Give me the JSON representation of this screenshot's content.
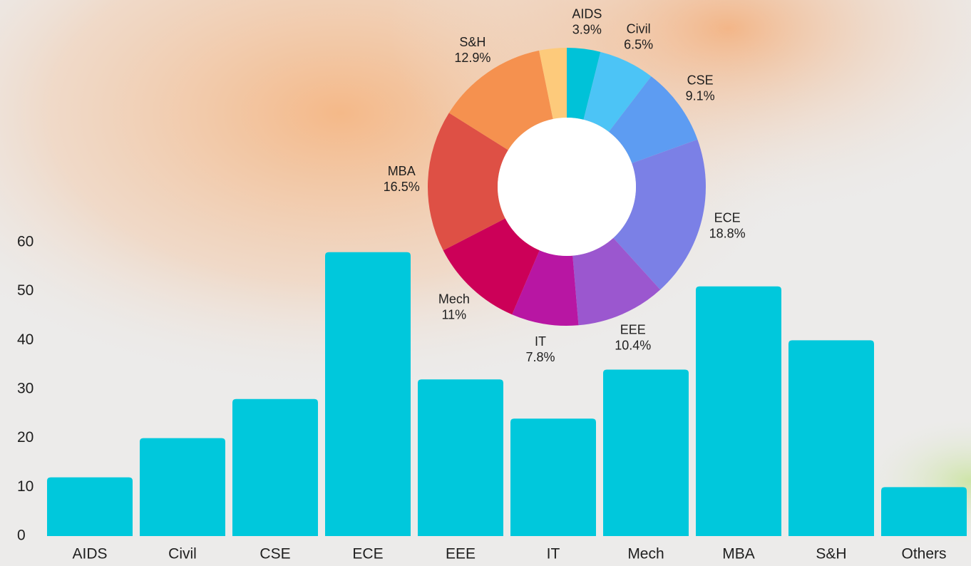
{
  "chart_data": [
    {
      "type": "bar",
      "categories": [
        "AIDS",
        "Civil",
        "CSE",
        "ECE",
        "EEE",
        "IT",
        "Mech",
        "MBA",
        "S&H",
        "Others"
      ],
      "values": [
        12,
        20,
        28,
        58,
        32,
        24,
        34,
        51,
        40,
        10
      ],
      "color": "#00c8dc",
      "ylim": [
        0,
        60
      ],
      "yticks": [
        0,
        10,
        20,
        30,
        40,
        50,
        60
      ],
      "grid": false
    },
    {
      "type": "pie",
      "donut": true,
      "categories": [
        "AIDS",
        "Civil",
        "CSE",
        "ECE",
        "EEE",
        "IT",
        "Mech",
        "MBA",
        "S&H",
        null
      ],
      "values": [
        3.9,
        6.5,
        9.1,
        18.8,
        10.4,
        7.8,
        11,
        16.5,
        12.9,
        3.2
      ],
      "value_labels": [
        "3.9%",
        "6.5%",
        "9.1%",
        "18.8%",
        "10.4%",
        "7.8%",
        "11%",
        "16.5%",
        "12.9%",
        null
      ],
      "colors": [
        "#00c2d8",
        "#4cc4f6",
        "#5d9cf2",
        "#7b80e6",
        "#9b57cf",
        "#b816a3",
        "#cc0058",
        "#de5045",
        "#f5914f",
        "#fdca7b"
      ]
    }
  ]
}
